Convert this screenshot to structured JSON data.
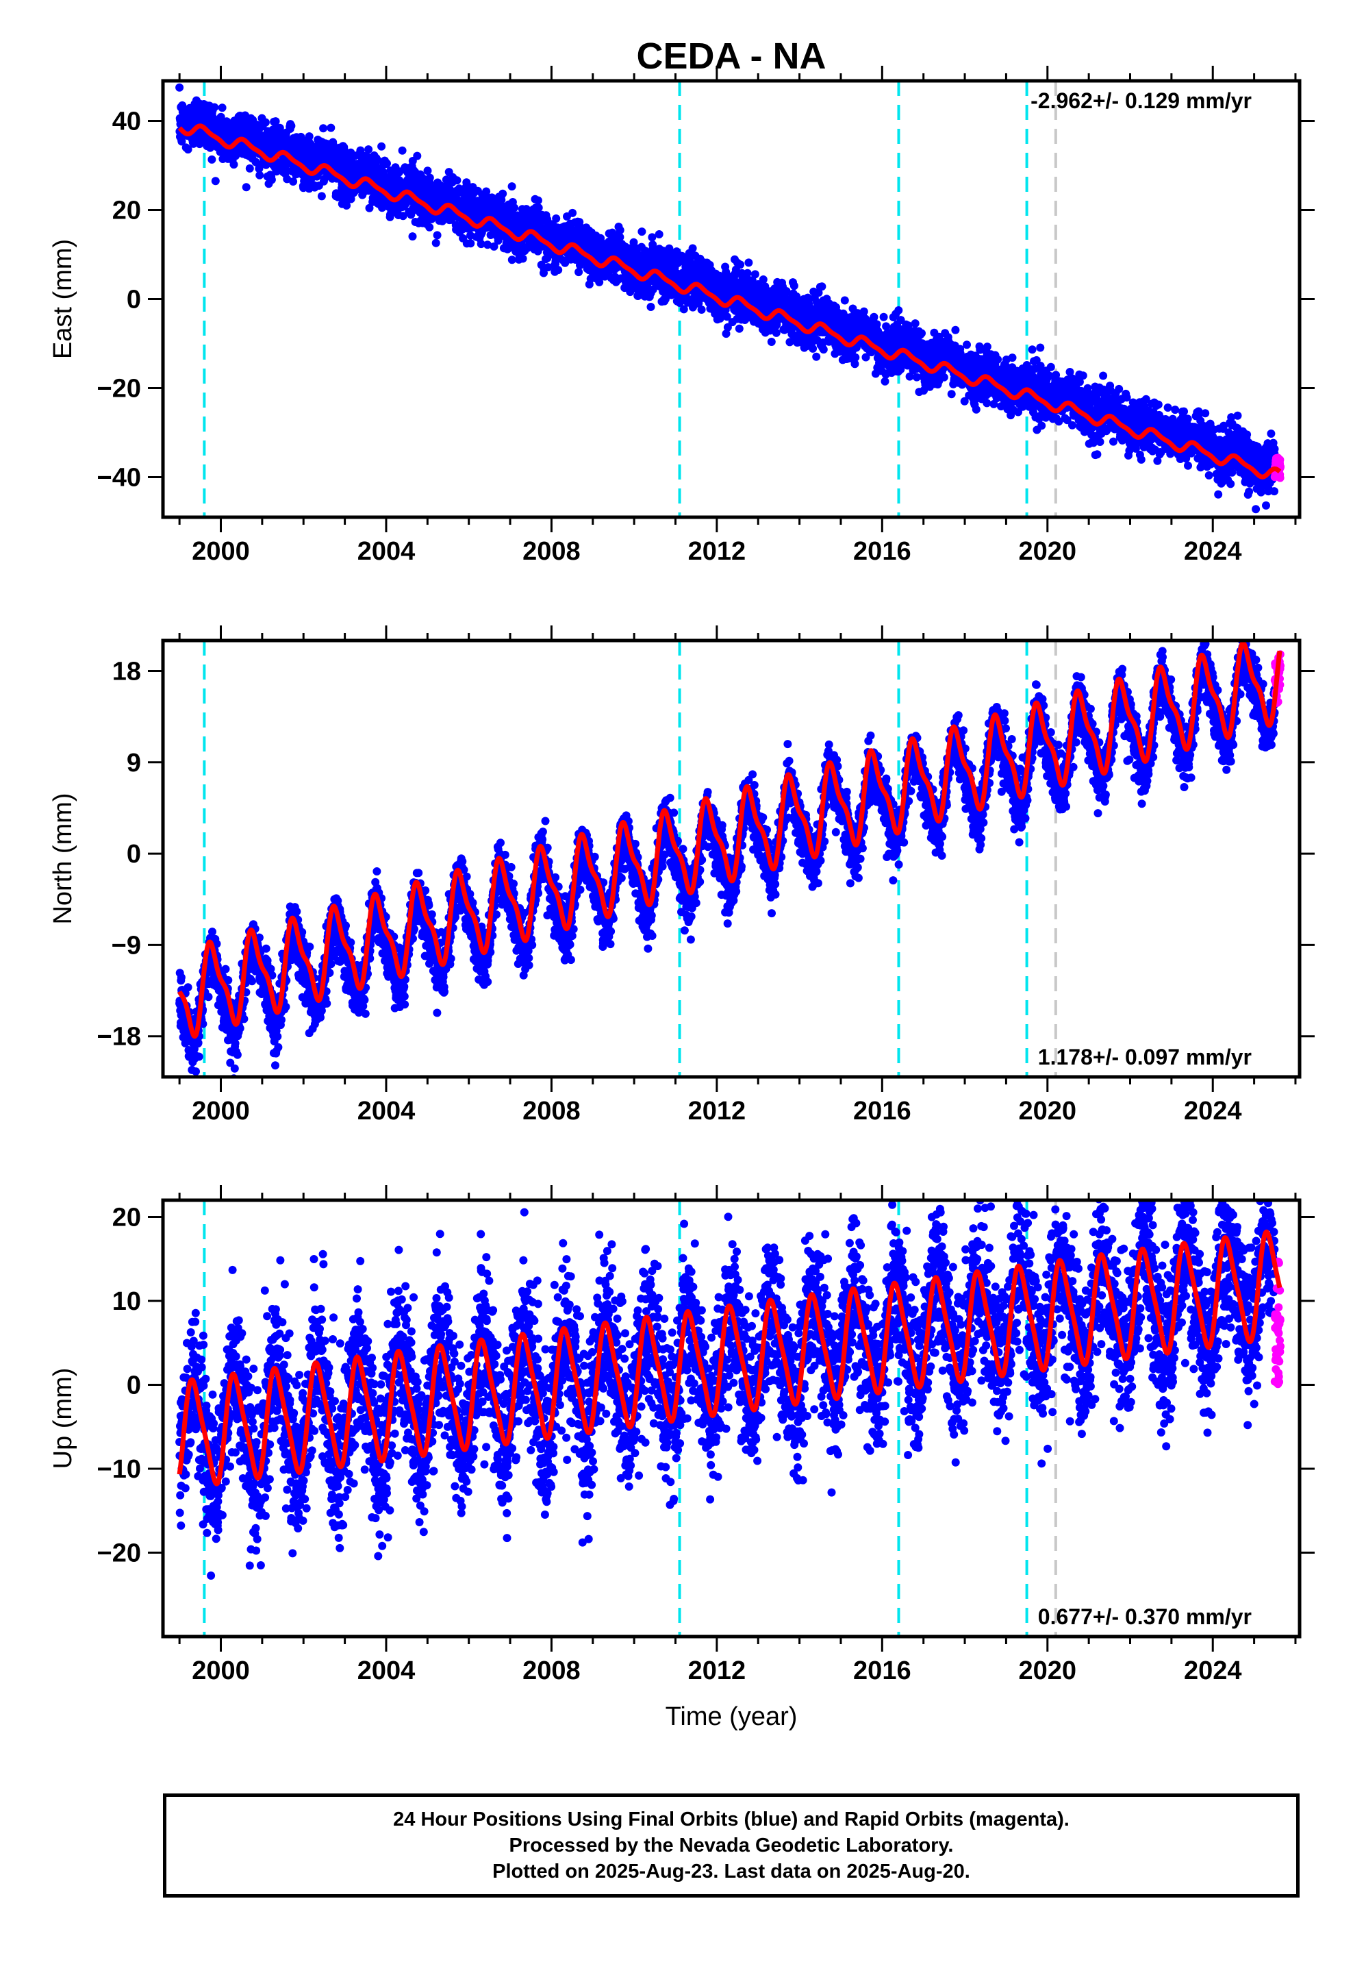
{
  "title": "CEDA - NA",
  "x_axis_label": "Time (year)",
  "x_tick_labels": [
    "2000",
    "2004",
    "2008",
    "2012",
    "2016",
    "2020",
    "2024"
  ],
  "footer": {
    "line1": "24 Hour Positions Using Final Orbits (blue) and Rapid Orbits (magenta).",
    "line2": "Processed by the Nevada Geodetic Laboratory.",
    "line3": "Plotted on 2025-Aug-23. Last data on 2025-Aug-20."
  },
  "colors": {
    "final_orbits": "#0000ff",
    "rapid_orbits": "#ff00ff",
    "model": "#ff0000",
    "equipment_change": "#00e5ee",
    "other_event": "#c8c8c8"
  },
  "chart_data": [
    {
      "type": "scatter",
      "ylabel": "East (mm)",
      "xlim": [
        1998.6,
        2026.1
      ],
      "ylim": [
        -49,
        49
      ],
      "yticks": [
        -40,
        -20,
        0,
        20,
        40
      ],
      "rate_label": "-2.962+/- 0.129 mm/yr",
      "rate_label_position": "top-right",
      "series": [
        {
          "name": "Final Orbits (blue)",
          "role": "final",
          "start": 1999.0,
          "end": 2025.5,
          "step": 0.0045,
          "trend": [
            1999.0,
            40.5,
            -2.962
          ],
          "annual_amp": 1.2,
          "scatter": 2.8,
          "steps": [
            [
              2019.5,
              0.0
            ],
            [
              2020.1,
              0.0
            ]
          ]
        },
        {
          "name": "Rapid Orbits (magenta)",
          "role": "rapid",
          "start": 2025.5,
          "end": 2025.64,
          "step": 0.0035,
          "trend": [
            2025.5,
            -38.5,
            -2.962
          ],
          "annual_amp": 0.0,
          "scatter": 1.4
        }
      ],
      "model": {
        "start": 1999.0,
        "end": 2025.62,
        "trend": [
          1999.0,
          39.0,
          -2.962
        ],
        "annual_amp": 1.2,
        "annual_phase": 0.35,
        "semiannual_amp": 0.4
      },
      "event_lines": [
        {
          "x": 1999.6,
          "kind": "equipment"
        },
        {
          "x": 2011.1,
          "kind": "equipment"
        },
        {
          "x": 2016.4,
          "kind": "equipment"
        },
        {
          "x": 2019.5,
          "kind": "equipment"
        },
        {
          "x": 2020.2,
          "kind": "other"
        }
      ]
    },
    {
      "type": "scatter",
      "ylabel": "North (mm)",
      "xlim": [
        1998.6,
        2026.1
      ],
      "ylim": [
        -22,
        21
      ],
      "yticks": [
        -18,
        -9,
        0,
        9,
        18
      ],
      "rate_label": "1.178+/- 0.097 mm/yr",
      "rate_label_position": "bottom-right",
      "series": [
        {
          "name": "Final Orbits (blue)",
          "role": "final",
          "start": 1999.0,
          "end": 2025.5,
          "step": 0.0045,
          "trend": [
            1999.0,
            -15.0,
            1.178
          ],
          "annual_amp": 3.8,
          "scatter": 1.4
        },
        {
          "name": "Rapid Orbits (magenta)",
          "role": "rapid",
          "start": 2025.5,
          "end": 2025.64,
          "step": 0.0035,
          "trend": [
            2025.5,
            17.5,
            1.178
          ],
          "annual_amp": 0.0,
          "scatter": 1.3
        }
      ],
      "model": {
        "start": 1999.0,
        "end": 2025.62,
        "trend": [
          1999.0,
          -14.0,
          1.178
        ],
        "annual_amp": 3.8,
        "annual_phase": 0.55,
        "semiannual_amp": 1.3
      },
      "event_lines": [
        {
          "x": 1999.6,
          "kind": "equipment"
        },
        {
          "x": 2011.1,
          "kind": "equipment"
        },
        {
          "x": 2016.4,
          "kind": "equipment"
        },
        {
          "x": 2019.5,
          "kind": "equipment"
        },
        {
          "x": 2020.2,
          "kind": "other"
        }
      ]
    },
    {
      "type": "scatter",
      "ylabel": "Up (mm)",
      "xlim": [
        1998.6,
        2026.1
      ],
      "ylim": [
        -30,
        22
      ],
      "yticks": [
        -20,
        -10,
        0,
        10,
        20
      ],
      "rate_label": "0.677+/- 0.370 mm/yr",
      "rate_label_position": "bottom-right",
      "series": [
        {
          "name": "Final Orbits (blue)",
          "role": "final",
          "start": 1999.0,
          "end": 2025.5,
          "step": 0.0045,
          "trend": [
            1999.0,
            -6.0,
            0.677
          ],
          "annual_amp": 6.0,
          "scatter": 4.6
        },
        {
          "name": "Rapid Orbits (magenta)",
          "role": "rapid",
          "start": 2025.5,
          "end": 2025.64,
          "step": 0.0035,
          "trend": [
            2025.5,
            6.0,
            0.0
          ],
          "annual_amp": 0.0,
          "scatter": 3.8
        }
      ],
      "model": {
        "start": 1999.0,
        "end": 2025.62,
        "trend": [
          1999.0,
          -6.0,
          0.677
        ],
        "annual_amp": 6.0,
        "annual_phase": 0.1,
        "semiannual_amp": 1.2
      },
      "event_lines": [
        {
          "x": 1999.6,
          "kind": "equipment"
        },
        {
          "x": 2011.1,
          "kind": "equipment"
        },
        {
          "x": 2016.4,
          "kind": "equipment"
        },
        {
          "x": 2019.5,
          "kind": "equipment"
        },
        {
          "x": 2020.2,
          "kind": "other"
        }
      ]
    }
  ]
}
